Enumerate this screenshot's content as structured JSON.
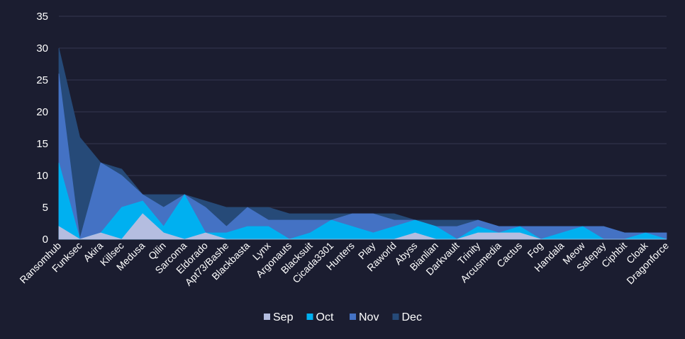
{
  "chart_data": {
    "type": "area",
    "stacked": true,
    "title": "",
    "xlabel": "",
    "ylabel": "",
    "ylim": [
      0,
      35
    ],
    "yticks": [
      0,
      5,
      10,
      15,
      20,
      25,
      30,
      35
    ],
    "grid": true,
    "legend_position": "bottom",
    "categories": [
      "Ransomhub",
      "Funksec",
      "Akira",
      "Killsec",
      "Medusa",
      "Qilin",
      "Sarcoma",
      "Eldorado",
      "Apt73/Bashe",
      "Blackbasta",
      "Lynx",
      "Argonauts",
      "Blacksuit",
      "Cicada3301",
      "Hunters",
      "Play",
      "Raworld",
      "Abyss",
      "Bianlian",
      "Darkvault",
      "Trinity",
      "Arcusmedia",
      "Cactus",
      "Fog",
      "Handala",
      "Meow",
      "Safepay",
      "Ciphbit",
      "Cloak",
      "Dragonforce"
    ],
    "series": [
      {
        "name": "Sep",
        "color": "#b4bde0",
        "values": [
          2,
          0,
          1,
          0,
          4,
          1,
          0,
          1,
          0,
          0,
          0,
          0,
          0,
          0,
          0,
          0,
          0,
          1,
          0,
          0,
          1,
          1,
          1,
          0,
          0,
          0,
          0,
          0,
          0,
          0
        ]
      },
      {
        "name": "Oct",
        "color": "#00b0f0",
        "values": [
          10,
          0,
          0,
          5,
          2,
          1,
          7,
          0,
          1,
          2,
          2,
          0,
          1,
          3,
          2,
          1,
          2,
          2,
          2,
          0,
          1,
          0,
          1,
          0,
          1,
          2,
          0,
          0,
          1,
          0
        ]
      },
      {
        "name": "Nov",
        "color": "#4472c4",
        "values": [
          14,
          0,
          11,
          5,
          1,
          3,
          0,
          4,
          1,
          3,
          1,
          3,
          2,
          0,
          2,
          3,
          1,
          0,
          0,
          2,
          1,
          1,
          0,
          2,
          1,
          0,
          2,
          1,
          0,
          1
        ]
      },
      {
        "name": "Dec",
        "color": "#264a78",
        "values": [
          4,
          16,
          0,
          1,
          0,
          2,
          0,
          1,
          3,
          0,
          2,
          1,
          1,
          1,
          0,
          0,
          1,
          0,
          1,
          1,
          0,
          0,
          0,
          0,
          0,
          0,
          0,
          0,
          0,
          0
        ]
      }
    ]
  }
}
